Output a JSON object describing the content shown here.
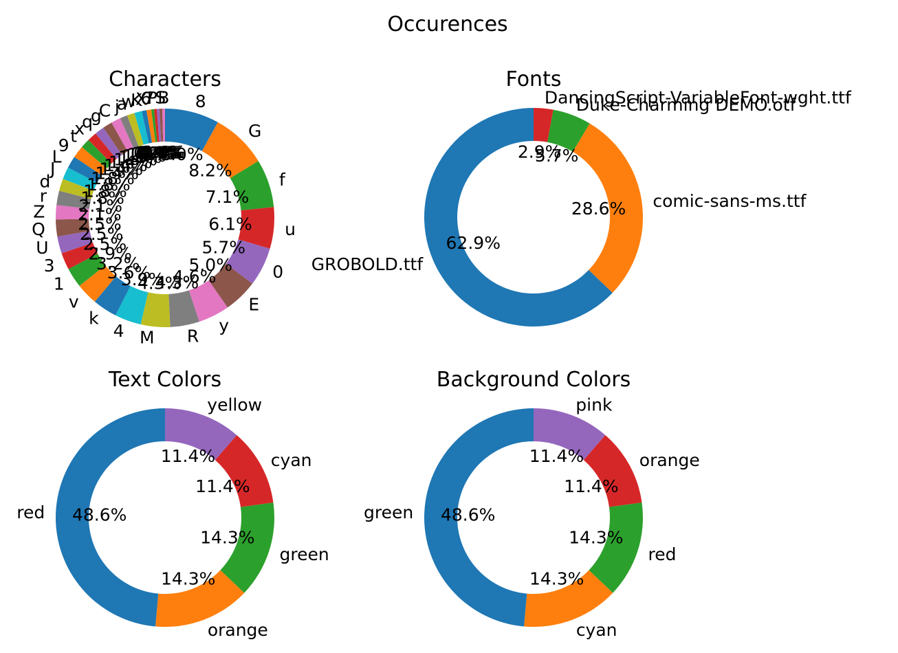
{
  "figure": {
    "title": "Occurences"
  },
  "chart_data": [
    {
      "type": "pie",
      "donut": true,
      "title": "Characters",
      "start_angle_deg": 90,
      "direction": "clockwise",
      "labels": [
        "8",
        "G",
        "f",
        "u",
        "0",
        "E",
        "y",
        "R",
        "M",
        "4",
        "k",
        "v",
        "1",
        "3",
        "U",
        "Q",
        "Z",
        "r",
        "d",
        "J",
        "L",
        "9",
        "t",
        "x",
        "q",
        "g",
        "C",
        "j",
        "a",
        "w",
        "K",
        "X",
        "6",
        "7",
        "P",
        "S",
        "B"
      ],
      "values": [
        8.0,
        8.2,
        7.1,
        6.1,
        5.7,
        5.0,
        4.6,
        4.3,
        4.3,
        3.9,
        3.6,
        3.2,
        2.9,
        2.5,
        2.5,
        2.5,
        2.1,
        2.1,
        1.8,
        1.8,
        1.8,
        1.8,
        1.4,
        1.4,
        1.4,
        1.4,
        1.4,
        1.1,
        1.1,
        1.1,
        0.7,
        0.7,
        0.4,
        0.4,
        0.4,
        0.4,
        0.4
      ],
      "percent_labels": [
        "8.0%",
        "8.2%",
        "7.1%",
        "6.1%",
        "5.7%",
        "5.0%",
        "4.6%",
        "4.3%",
        "4.3%",
        "3.9%",
        "3.6%",
        "3.2%",
        "2.9%",
        "2.5%",
        "2.5%",
        "2.5%",
        "2.1%",
        "2.1%",
        "1.8%",
        "1.8%",
        "1.8%",
        "1.8%",
        "1.4%",
        "1.4%",
        "1.4%",
        "1.4%",
        "1.4%",
        "1.1%",
        "1.1%",
        "1.1%",
        "0.7%",
        "0.7%",
        "0.4%",
        "0.4%",
        "0.4%",
        "0.4%",
        "0.4%"
      ]
    },
    {
      "type": "pie",
      "donut": true,
      "title": "Fonts",
      "start_angle_deg": 90,
      "direction": "clockwise",
      "labels": [
        "DancingScript-VariableFont-wght.ttf",
        "Duke-Charming DEMO.otf",
        "comic-sans-ms.ttf",
        "GROBOLD.ttf"
      ],
      "values": [
        2.9,
        5.7,
        28.6,
        62.9
      ],
      "percent_labels": [
        "2.9%",
        "5.7%",
        "28.6%",
        "62.9%"
      ]
    },
    {
      "type": "pie",
      "donut": true,
      "title": "Text Colors",
      "start_angle_deg": 90,
      "direction": "clockwise",
      "labels": [
        "yellow",
        "cyan",
        "green",
        "orange",
        "red"
      ],
      "values": [
        11.4,
        11.4,
        14.3,
        14.3,
        48.6
      ],
      "percent_labels": [
        "11.4%",
        "11.4%",
        "14.3%",
        "14.3%",
        "48.6%"
      ]
    },
    {
      "type": "pie",
      "donut": true,
      "title": "Background Colors",
      "start_angle_deg": 90,
      "direction": "clockwise",
      "labels": [
        "pink",
        "orange",
        "red",
        "cyan",
        "green"
      ],
      "values": [
        11.4,
        11.4,
        14.3,
        14.3,
        48.6
      ],
      "percent_labels": [
        "11.4%",
        "11.4%",
        "14.3%",
        "14.3%",
        "48.6%"
      ]
    }
  ],
  "colors": {
    "characters": [
      "#1f77b4",
      "#ff7f0e",
      "#2ca02c",
      "#d62728",
      "#9467bd",
      "#8c564b",
      "#e377c2",
      "#7f7f7f",
      "#bcbd22",
      "#17becf",
      "#1f77b4",
      "#ff7f0e",
      "#2ca02c",
      "#d62728",
      "#9467bd",
      "#8c564b",
      "#e377c2",
      "#7f7f7f",
      "#bcbd22",
      "#17becf",
      "#1f77b4",
      "#ff7f0e",
      "#2ca02c",
      "#d62728",
      "#9467bd",
      "#8c564b",
      "#e377c2",
      "#7f7f7f",
      "#bcbd22",
      "#17becf",
      "#1f77b4",
      "#ff7f0e",
      "#2ca02c",
      "#d62728",
      "#9467bd",
      "#8c564b",
      "#e377c2"
    ],
    "fonts": [
      "#d62728",
      "#2ca02c",
      "#ff7f0e",
      "#1f77b4"
    ],
    "text_colors": [
      "#9467bd",
      "#d62728",
      "#2ca02c",
      "#ff7f0e",
      "#1f77b4"
    ],
    "background_colors": [
      "#9467bd",
      "#d62728",
      "#2ca02c",
      "#ff7f0e",
      "#1f77b4"
    ]
  }
}
